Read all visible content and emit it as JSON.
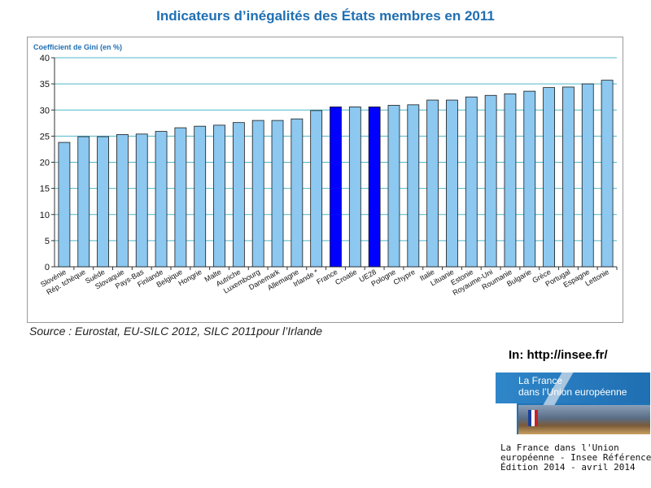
{
  "page": {
    "title": "Indicateurs d’inégalités des États membres en 2011",
    "source": "Source : Eurostat, EU-SILC 2012, SILC 2011pour l’Irlande",
    "credit": "In: http://insee.fr/",
    "cover": {
      "title_line1": "La France",
      "title_line2": "dans l’Union européenne",
      "caption_line1": "La France dans l'Union",
      "caption_line2": "européenne - Insee Références",
      "caption_line3": "Édition 2014 - avril 2014"
    }
  },
  "colors": {
    "bar": "#8cc8f0",
    "bar_highlight": "#0000ff",
    "gridline": "#4fb7c9",
    "title": "#1f6fb2"
  },
  "chart_data": {
    "type": "bar",
    "title": "",
    "ylabel": "Coefficient de Gini (en %)",
    "xlabel": "",
    "ylim": [
      0,
      40
    ],
    "yticks": [
      0,
      5,
      10,
      15,
      20,
      25,
      30,
      35,
      40
    ],
    "grid": true,
    "categories": [
      "Slovénie",
      "Rép. tchèque",
      "Suède",
      "Slovaquie",
      "Pays-Bas",
      "Finlande",
      "Belgique",
      "Hongrie",
      "Malte",
      "Autriche",
      "Luxembourg",
      "Danemark",
      "Allemagne",
      "Irlande *",
      "France",
      "Croatie",
      "UE28",
      "Pologne",
      "Chypre",
      "Italie",
      "Lituanie",
      "Estonie",
      "Royaume-Uni",
      "Roumanie",
      "Bulgarie",
      "Grèce",
      "Portugal",
      "Espagne",
      "Lettonie"
    ],
    "values": [
      23.8,
      24.9,
      24.9,
      25.3,
      25.4,
      25.9,
      26.6,
      26.9,
      27.1,
      27.6,
      28.0,
      28.0,
      28.3,
      29.9,
      30.6,
      30.6,
      30.6,
      30.9,
      31.0,
      31.9,
      31.9,
      32.5,
      32.8,
      33.1,
      33.6,
      34.3,
      34.4,
      35.0,
      35.7
    ],
    "highlighted": [
      "France",
      "UE28"
    ]
  }
}
